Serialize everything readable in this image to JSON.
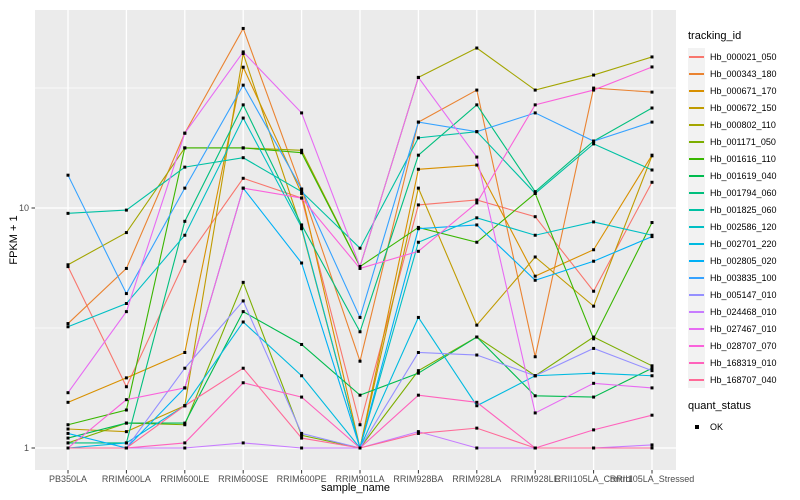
{
  "chart_data": {
    "type": "line",
    "title": "",
    "xlabel": "sample_name",
    "ylabel": "FPKM + 1",
    "y_scale": "log10",
    "ylim": [
      0.82,
      63
    ],
    "grid": "on",
    "legend_position": "right",
    "y_ticks": [
      {
        "label": "1",
        "value": 1
      },
      {
        "label": "10",
        "value": 10
      }
    ],
    "y_minor_gridlines": [
      3.162,
      31.62
    ],
    "categories": [
      "PB350LA",
      "RRIM600LA",
      "RRIM600LE",
      "RRIM600SE",
      "RRIM600PE",
      "RRIM901LA",
      "RRIM928BA",
      "RRIM928LA",
      "RRIM928LE",
      "RRII105LA_Control",
      "RRII105LA_Stressed"
    ],
    "series": [
      {
        "name": "Hb_000021_050",
        "color": "#F8766D",
        "values": [
          5.7,
          1.8,
          6.0,
          13.3,
          11.0,
          1.25,
          10.3,
          10.8,
          9.2,
          4.5,
          12.8
        ]
      },
      {
        "name": "Hb_000343_180",
        "color": "#EA8331",
        "values": [
          3.3,
          5.6,
          20.5,
          56.0,
          12.0,
          2.3,
          22.8,
          31.0,
          2.4,
          31.6,
          30.4
        ]
      },
      {
        "name": "Hb_000671_170",
        "color": "#D89000",
        "values": [
          1.55,
          1.96,
          2.5,
          38.6,
          11.5,
          1.0,
          14.5,
          15.1,
          5.2,
          6.7,
          16.6
        ]
      },
      {
        "name": "Hb_000672_150",
        "color": "#C09B00",
        "values": [
          1.2,
          1.17,
          1.5,
          44.0,
          8.2,
          1.0,
          12.1,
          3.25,
          6.25,
          3.9,
          16.5
        ]
      },
      {
        "name": "Hb_000802_110",
        "color": "#A3A500",
        "values": [
          5.8,
          7.9,
          17.8,
          17.8,
          17.4,
          5.7,
          35.0,
          46.4,
          31.0,
          35.8,
          42.6
        ]
      },
      {
        "name": "Hb_001171_050",
        "color": "#7CAE00",
        "values": [
          1.05,
          1.27,
          1.25,
          4.9,
          1.13,
          1.0,
          2.1,
          2.9,
          2.0,
          2.9,
          2.2
        ]
      },
      {
        "name": "Hb_001616_110",
        "color": "#39B600",
        "values": [
          1.25,
          1.44,
          17.8,
          17.8,
          17.0,
          5.7,
          8.3,
          7.2,
          11.5,
          2.85,
          8.7
        ]
      },
      {
        "name": "Hb_001619_040",
        "color": "#00BB4E",
        "values": [
          1.1,
          1.27,
          1.27,
          3.7,
          2.7,
          1.66,
          2.05,
          2.9,
          1.65,
          1.63,
          2.15
        ]
      },
      {
        "name": "Hb_001794_060",
        "color": "#00BF7D",
        "values": [
          1.05,
          1.05,
          8.8,
          26.9,
          8.5,
          3.05,
          16.6,
          26.9,
          11.7,
          19.0,
          26.1
        ]
      },
      {
        "name": "Hb_001825_060",
        "color": "#00C1A3",
        "values": [
          9.5,
          9.8,
          14.8,
          16.2,
          11.7,
          6.8,
          19.6,
          20.8,
          11.5,
          18.5,
          14.4
        ]
      },
      {
        "name": "Hb_002586_120",
        "color": "#00BFC4",
        "values": [
          3.2,
          4.0,
          7.7,
          23.7,
          8.3,
          1.0,
          7.2,
          9.1,
          7.7,
          8.75,
          7.7
        ]
      },
      {
        "name": "Hb_002701_220",
        "color": "#00BAE0",
        "values": [
          1.0,
          1.05,
          1.5,
          3.35,
          2.0,
          1.0,
          3.5,
          1.5,
          2.0,
          2.05,
          2.0
        ]
      },
      {
        "name": "Hb_002805_020",
        "color": "#00B0F6",
        "values": [
          1.15,
          1.0,
          1.78,
          12.1,
          5.9,
          1.0,
          8.2,
          8.5,
          5.0,
          6.0,
          7.6
        ]
      },
      {
        "name": "Hb_003835_100",
        "color": "#35A2FF",
        "values": [
          13.7,
          4.4,
          12.1,
          32.5,
          12.0,
          3.5,
          22.8,
          20.8,
          24.9,
          19.0,
          22.8
        ]
      },
      {
        "name": "Hb_005147_010",
        "color": "#9590FF",
        "values": [
          1.0,
          1.0,
          2.15,
          4.1,
          1.15,
          1.0,
          2.5,
          2.44,
          2.0,
          2.6,
          2.1
        ]
      },
      {
        "name": "Hb_024468_010",
        "color": "#C77CFF",
        "values": [
          1.0,
          1.0,
          1.0,
          1.05,
          1.0,
          1.0,
          1.17,
          1.0,
          1.0,
          1.0,
          1.03
        ]
      },
      {
        "name": "Hb_027467_010",
        "color": "#E76BF3",
        "values": [
          1.7,
          3.7,
          20.5,
          44.7,
          24.9,
          5.7,
          35.0,
          16.3,
          1.4,
          1.86,
          1.78
        ]
      },
      {
        "name": "Hb_028707_070",
        "color": "#FA62DB",
        "values": [
          1.0,
          1.59,
          1.78,
          12.1,
          11.0,
          5.6,
          6.6,
          10.5,
          26.9,
          31.0,
          38.7
        ]
      },
      {
        "name": "Hb_168319_010",
        "color": "#FF62BC",
        "values": [
          1.0,
          1.0,
          1.05,
          1.87,
          1.63,
          1.0,
          1.66,
          1.55,
          1.0,
          1.19,
          1.37
        ]
      },
      {
        "name": "Hb_168707_040",
        "color": "#FF6A98",
        "values": [
          1.0,
          1.0,
          1.5,
          2.15,
          1.1,
          1.0,
          1.15,
          1.21,
          1.0,
          1.0,
          1.0
        ]
      }
    ],
    "legend": {
      "tracking_title": "tracking_id",
      "quant_title": "quant_status",
      "quant_value": "OK"
    },
    "colors": {
      "panel_bg": "#EBEBEB",
      "gridline": "#FFFFFF",
      "tick_text": "#4D4D4D",
      "legend_key_bg": "#F2F2F2",
      "point": "#000000"
    }
  }
}
